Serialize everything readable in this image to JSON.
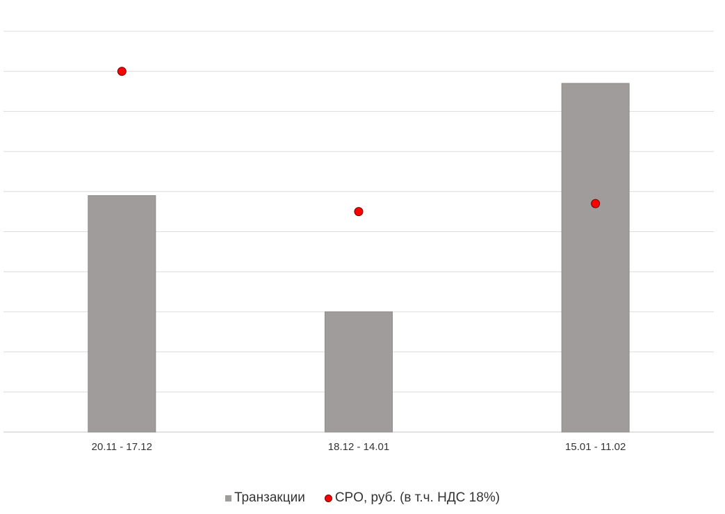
{
  "chart_data": {
    "type": "bar",
    "categories": [
      "20.11 - 17.12",
      "18.12 - 14.01",
      "15.01 - 11.02"
    ],
    "series": [
      {
        "name": "Транзакции",
        "kind": "bar",
        "color": "#a09c9b",
        "values": [
          59,
          30,
          87
        ]
      },
      {
        "name": "CPO, руб. (в т.ч. НДС 18%)",
        "kind": "scatter",
        "color": "#ff0000",
        "values": [
          90,
          55,
          57
        ]
      }
    ],
    "ylim": [
      0,
      100
    ],
    "gridlines": 10,
    "y_tick_labels_visible": false,
    "grid": true,
    "legend": "bottom"
  }
}
